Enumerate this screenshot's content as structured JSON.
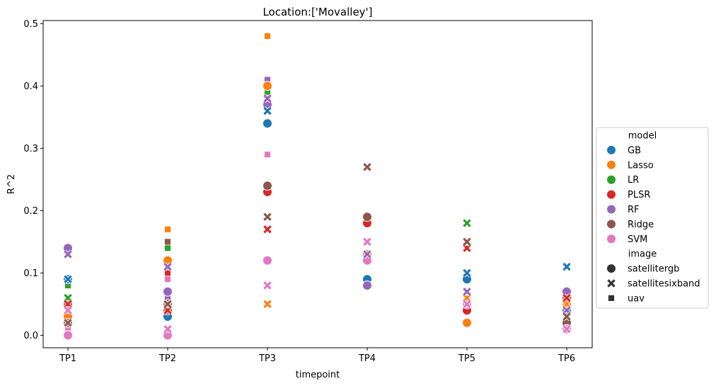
{
  "chart_data": {
    "type": "scatter",
    "title": "Location:['Movalley']",
    "xlabel": "timepoint",
    "ylabel": "R^2",
    "categories": [
      "TP1",
      "TP2",
      "TP3",
      "TP4",
      "TP5",
      "TP6"
    ],
    "ylim": [
      -0.02,
      0.505
    ],
    "yticks": [
      0.0,
      0.1,
      0.2,
      0.3,
      0.4,
      0.5
    ],
    "ytick_labels": [
      "0.0",
      "0.1",
      "0.2",
      "0.3",
      "0.4",
      "0.5"
    ],
    "grid": false,
    "legend": {
      "placement": "center-right outside",
      "hue_title": "model",
      "style_title": "image",
      "models": [
        {
          "name": "GB",
          "color": "#1f77b4"
        },
        {
          "name": "Lasso",
          "color": "#ff7f0e"
        },
        {
          "name": "LR",
          "color": "#2ca02c"
        },
        {
          "name": "PLSR",
          "color": "#d62728"
        },
        {
          "name": "RF",
          "color": "#9467bd"
        },
        {
          "name": "Ridge",
          "color": "#8c564b"
        },
        {
          "name": "SVM",
          "color": "#e377c2"
        }
      ],
      "images": [
        {
          "name": "satellitergb",
          "marker": "circle"
        },
        {
          "name": "satellitesixband",
          "marker": "x"
        },
        {
          "name": "uav",
          "marker": "square"
        }
      ]
    },
    "points": [
      {
        "x": "TP1",
        "model": "GB",
        "image": "satellitergb",
        "y": 0.09
      },
      {
        "x": "TP1",
        "model": "GB",
        "image": "satellitesixband",
        "y": 0.09
      },
      {
        "x": "TP1",
        "model": "GB",
        "image": "uav",
        "y": 0.09
      },
      {
        "x": "TP1",
        "model": "Lasso",
        "image": "satellitergb",
        "y": 0.03
      },
      {
        "x": "TP1",
        "model": "Lasso",
        "image": "satellitesixband",
        "y": 0.02
      },
      {
        "x": "TP1",
        "model": "Lasso",
        "image": "uav",
        "y": 0.09
      },
      {
        "x": "TP1",
        "model": "LR",
        "image": "satellitesixband",
        "y": 0.06
      },
      {
        "x": "TP1",
        "model": "LR",
        "image": "uav",
        "y": 0.08
      },
      {
        "x": "TP1",
        "model": "PLSR",
        "image": "satellitergb",
        "y": 0.05
      },
      {
        "x": "TP1",
        "model": "PLSR",
        "image": "satellitesixband",
        "y": 0.05
      },
      {
        "x": "TP1",
        "model": "PLSR",
        "image": "uav",
        "y": 0.09
      },
      {
        "x": "TP1",
        "model": "RF",
        "image": "satellitergb",
        "y": 0.14
      },
      {
        "x": "TP1",
        "model": "RF",
        "image": "satellitesixband",
        "y": 0.13
      },
      {
        "x": "TP1",
        "model": "RF",
        "image": "uav",
        "y": 0.06
      },
      {
        "x": "TP1",
        "model": "Ridge",
        "image": "satellitergb",
        "y": 0.02
      },
      {
        "x": "TP1",
        "model": "Ridge",
        "image": "satellitesixband",
        "y": 0.02
      },
      {
        "x": "TP1",
        "model": "Ridge",
        "image": "uav",
        "y": 0.09
      },
      {
        "x": "TP1",
        "model": "SVM",
        "image": "satellitergb",
        "y": 0.0
      },
      {
        "x": "TP1",
        "model": "SVM",
        "image": "satellitesixband",
        "y": 0.04
      },
      {
        "x": "TP1",
        "model": "SVM",
        "image": "uav",
        "y": 0.01
      },
      {
        "x": "TP2",
        "model": "GB",
        "image": "satellitergb",
        "y": 0.03
      },
      {
        "x": "TP2",
        "model": "GB",
        "image": "satellitesixband",
        "y": 0.04
      },
      {
        "x": "TP2",
        "model": "GB",
        "image": "uav",
        "y": 0.11
      },
      {
        "x": "TP2",
        "model": "Lasso",
        "image": "satellitergb",
        "y": 0.12
      },
      {
        "x": "TP2",
        "model": "Lasso",
        "image": "satellitesixband",
        "y": 0.05
      },
      {
        "x": "TP2",
        "model": "Lasso",
        "image": "uav",
        "y": 0.17
      },
      {
        "x": "TP2",
        "model": "LR",
        "image": "satellitesixband",
        "y": 0.05
      },
      {
        "x": "TP2",
        "model": "LR",
        "image": "uav",
        "y": 0.14
      },
      {
        "x": "TP2",
        "model": "PLSR",
        "image": "satellitergb",
        "y": 0.04
      },
      {
        "x": "TP2",
        "model": "PLSR",
        "image": "satellitesixband",
        "y": 0.04
      },
      {
        "x": "TP2",
        "model": "PLSR",
        "image": "uav",
        "y": 0.1
      },
      {
        "x": "TP2",
        "model": "RF",
        "image": "satellitergb",
        "y": 0.07
      },
      {
        "x": "TP2",
        "model": "RF",
        "image": "satellitesixband",
        "y": 0.11
      },
      {
        "x": "TP2",
        "model": "RF",
        "image": "uav",
        "y": 0.06
      },
      {
        "x": "TP2",
        "model": "Ridge",
        "image": "satellitergb",
        "y": 0.05
      },
      {
        "x": "TP2",
        "model": "Ridge",
        "image": "satellitesixband",
        "y": 0.05
      },
      {
        "x": "TP2",
        "model": "Ridge",
        "image": "uav",
        "y": 0.15
      },
      {
        "x": "TP2",
        "model": "SVM",
        "image": "satellitergb",
        "y": 0.0
      },
      {
        "x": "TP2",
        "model": "SVM",
        "image": "satellitesixband",
        "y": 0.01
      },
      {
        "x": "TP2",
        "model": "SVM",
        "image": "uav",
        "y": 0.09
      },
      {
        "x": "TP3",
        "model": "GB",
        "image": "satellitergb",
        "y": 0.34
      },
      {
        "x": "TP3",
        "model": "GB",
        "image": "satellitesixband",
        "y": 0.36
      },
      {
        "x": "TP3",
        "model": "GB",
        "image": "uav",
        "y": 0.41
      },
      {
        "x": "TP3",
        "model": "Lasso",
        "image": "satellitergb",
        "y": 0.4
      },
      {
        "x": "TP3",
        "model": "Lasso",
        "image": "satellitesixband",
        "y": 0.05
      },
      {
        "x": "TP3",
        "model": "Lasso",
        "image": "uav",
        "y": 0.48
      },
      {
        "x": "TP3",
        "model": "LR",
        "image": "satellitesixband",
        "y": 0.17
      },
      {
        "x": "TP3",
        "model": "LR",
        "image": "uav",
        "y": 0.39
      },
      {
        "x": "TP3",
        "model": "PLSR",
        "image": "satellitergb",
        "y": 0.23
      },
      {
        "x": "TP3",
        "model": "PLSR",
        "image": "satellitesixband",
        "y": 0.17
      },
      {
        "x": "TP3",
        "model": "PLSR",
        "image": "uav",
        "y": 0.38
      },
      {
        "x": "TP3",
        "model": "RF",
        "image": "satellitergb",
        "y": 0.37
      },
      {
        "x": "TP3",
        "model": "RF",
        "image": "satellitesixband",
        "y": 0.38
      },
      {
        "x": "TP3",
        "model": "RF",
        "image": "uav",
        "y": 0.41
      },
      {
        "x": "TP3",
        "model": "Ridge",
        "image": "satellitergb",
        "y": 0.24
      },
      {
        "x": "TP3",
        "model": "Ridge",
        "image": "satellitesixband",
        "y": 0.19
      },
      {
        "x": "TP3",
        "model": "Ridge",
        "image": "uav",
        "y": 0.38
      },
      {
        "x": "TP3",
        "model": "SVM",
        "image": "satellitergb",
        "y": 0.12
      },
      {
        "x": "TP3",
        "model": "SVM",
        "image": "satellitesixband",
        "y": 0.08
      },
      {
        "x": "TP3",
        "model": "SVM",
        "image": "uav",
        "y": 0.29
      },
      {
        "x": "TP4",
        "model": "GB",
        "image": "satellitergb",
        "y": 0.09
      },
      {
        "x": "TP4",
        "model": "Lasso",
        "image": "satellitergb",
        "y": 0.13
      },
      {
        "x": "TP4",
        "model": "PLSR",
        "image": "satellitergb",
        "y": 0.18
      },
      {
        "x": "TP4",
        "model": "RF",
        "image": "satellitergb",
        "y": 0.08
      },
      {
        "x": "TP4",
        "model": "RF",
        "image": "satellitesixband",
        "y": 0.13
      },
      {
        "x": "TP4",
        "model": "Ridge",
        "image": "satellitergb",
        "y": 0.19
      },
      {
        "x": "TP4",
        "model": "Ridge",
        "image": "satellitesixband",
        "y": 0.27
      },
      {
        "x": "TP4",
        "model": "SVM",
        "image": "satellitergb",
        "y": 0.12
      },
      {
        "x": "TP4",
        "model": "SVM",
        "image": "satellitesixband",
        "y": 0.15
      },
      {
        "x": "TP5",
        "model": "GB",
        "image": "satellitergb",
        "y": 0.09
      },
      {
        "x": "TP5",
        "model": "GB",
        "image": "satellitesixband",
        "y": 0.1
      },
      {
        "x": "TP5",
        "model": "Lasso",
        "image": "satellitergb",
        "y": 0.02
      },
      {
        "x": "TP5",
        "model": "Lasso",
        "image": "satellitesixband",
        "y": 0.06
      },
      {
        "x": "TP5",
        "model": "LR",
        "image": "satellitesixband",
        "y": 0.18
      },
      {
        "x": "TP5",
        "model": "PLSR",
        "image": "satellitergb",
        "y": 0.04
      },
      {
        "x": "TP5",
        "model": "PLSR",
        "image": "satellitesixband",
        "y": 0.14
      },
      {
        "x": "TP5",
        "model": "RF",
        "image": "satellitergb",
        "y": 0.05
      },
      {
        "x": "TP5",
        "model": "RF",
        "image": "satellitesixband",
        "y": 0.07
      },
      {
        "x": "TP5",
        "model": "Ridge",
        "image": "satellitergb",
        "y": 0.05
      },
      {
        "x": "TP5",
        "model": "Ridge",
        "image": "satellitesixband",
        "y": 0.15
      },
      {
        "x": "TP5",
        "model": "SVM",
        "image": "satellitergb",
        "y": 0.05
      },
      {
        "x": "TP5",
        "model": "SVM",
        "image": "satellitesixband",
        "y": 0.05
      },
      {
        "x": "TP6",
        "model": "GB",
        "image": "satellitergb",
        "y": 0.04
      },
      {
        "x": "TP6",
        "model": "GB",
        "image": "satellitesixband",
        "y": 0.11
      },
      {
        "x": "TP6",
        "model": "Lasso",
        "image": "satellitergb",
        "y": 0.05
      },
      {
        "x": "TP6",
        "model": "Lasso",
        "image": "satellitesixband",
        "y": 0.05
      },
      {
        "x": "TP6",
        "model": "LR",
        "image": "satellitesixband",
        "y": 0.06
      },
      {
        "x": "TP6",
        "model": "PLSR",
        "image": "satellitergb",
        "y": 0.06
      },
      {
        "x": "TP6",
        "model": "PLSR",
        "image": "satellitesixband",
        "y": 0.06
      },
      {
        "x": "TP6",
        "model": "RF",
        "image": "satellitergb",
        "y": 0.07
      },
      {
        "x": "TP6",
        "model": "RF",
        "image": "satellitesixband",
        "y": 0.04
      },
      {
        "x": "TP6",
        "model": "Ridge",
        "image": "satellitergb",
        "y": 0.02
      },
      {
        "x": "TP6",
        "model": "Ridge",
        "image": "satellitesixband",
        "y": 0.03
      },
      {
        "x": "TP6",
        "model": "SVM",
        "image": "satellitergb",
        "y": 0.01
      },
      {
        "x": "TP6",
        "model": "SVM",
        "image": "satellitesixband",
        "y": 0.01
      }
    ]
  }
}
